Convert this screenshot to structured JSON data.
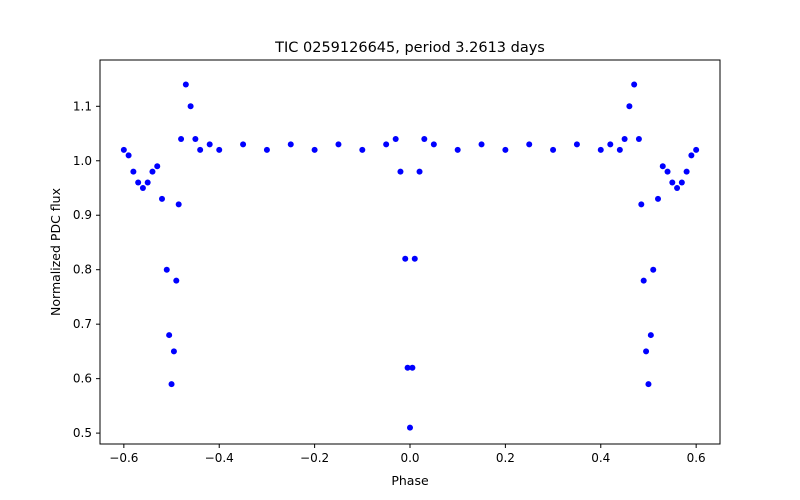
{
  "chart_data": {
    "type": "scatter",
    "title": "TIC 0259126645, period 3.2613 days",
    "xlabel": "Phase",
    "ylabel": "Normalized PDC flux",
    "xlim": [
      -0.65,
      0.65
    ],
    "ylim": [
      0.48,
      1.185
    ],
    "xticks": [
      -0.6,
      -0.4,
      -0.2,
      0.0,
      0.2,
      0.4,
      0.6
    ],
    "xtick_labels": [
      "−0.6",
      "−0.4",
      "−0.2",
      "0.0",
      "0.2",
      "0.4",
      "0.6"
    ],
    "yticks": [
      0.5,
      0.6,
      0.7,
      0.8,
      0.9,
      1.0,
      1.1
    ],
    "ytick_labels": [
      "0.5",
      "0.6",
      "0.7",
      "0.8",
      "0.9",
      "1.0",
      "1.1"
    ],
    "grid": false,
    "marker_color": "#0000ff",
    "series": [
      {
        "x": [
          -0.6,
          -0.59,
          -0.58,
          -0.57,
          -0.56,
          -0.55,
          -0.54,
          -0.53,
          -0.52,
          -0.51,
          -0.505,
          -0.5,
          -0.495,
          -0.49,
          -0.485,
          -0.48,
          -0.47,
          -0.46,
          -0.45,
          -0.44,
          -0.42,
          -0.4,
          -0.35,
          -0.3,
          -0.25,
          -0.2,
          -0.15,
          -0.1,
          -0.05,
          -0.03,
          -0.02,
          -0.01,
          -0.005,
          0.0,
          0.005,
          0.01,
          0.02,
          0.03,
          0.05,
          0.1,
          0.15,
          0.2,
          0.25,
          0.3,
          0.35,
          0.4,
          0.42,
          0.44,
          0.45,
          0.46,
          0.47,
          0.48,
          0.485,
          0.49,
          0.495,
          0.5,
          0.505,
          0.51,
          0.52,
          0.53,
          0.54,
          0.55,
          0.56,
          0.57,
          0.58,
          0.59,
          0.6
        ],
        "y": [
          1.02,
          1.01,
          0.98,
          0.96,
          0.95,
          0.96,
          0.98,
          0.99,
          0.93,
          0.8,
          0.68,
          0.59,
          0.65,
          0.78,
          0.92,
          1.04,
          1.14,
          1.1,
          1.04,
          1.02,
          1.03,
          1.02,
          1.03,
          1.02,
          1.03,
          1.02,
          1.03,
          1.02,
          1.03,
          1.04,
          0.98,
          0.82,
          0.62,
          0.51,
          0.62,
          0.82,
          0.98,
          1.04,
          1.03,
          1.02,
          1.03,
          1.02,
          1.03,
          1.02,
          1.03,
          1.02,
          1.03,
          1.02,
          1.04,
          1.1,
          1.14,
          1.04,
          0.92,
          0.78,
          0.65,
          0.59,
          0.68,
          0.8,
          0.93,
          0.99,
          0.98,
          0.96,
          0.95,
          0.96,
          0.98,
          1.01,
          1.02
        ]
      }
    ]
  }
}
